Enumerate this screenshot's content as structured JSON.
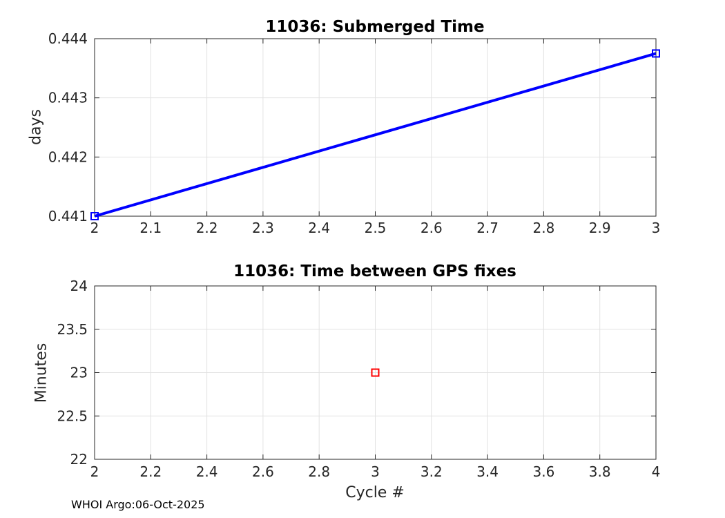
{
  "figure": {
    "background": "#ffffff",
    "footer": {
      "text": "WHOI Argo:06-Oct-2025"
    }
  },
  "style": {
    "axis_color": "#262626",
    "grid_color": "#e2e2e2",
    "tick_label_color": "#262626",
    "title_color": "#000000",
    "line_color": "#0000ff",
    "marker_color": "#ff0000"
  },
  "chart_data": [
    {
      "type": "line",
      "title": "11036: Submerged Time",
      "xlabel": "",
      "ylabel": "days",
      "xlim": [
        2,
        3
      ],
      "ylim": [
        0.441,
        0.444
      ],
      "grid": true,
      "legend": "none",
      "xticks": [
        2,
        2.1,
        2.2,
        2.3,
        2.4,
        2.5,
        2.6,
        2.7,
        2.8,
        2.9,
        3
      ],
      "xtick_labels": [
        "2",
        "2.1",
        "2.2",
        "2.3",
        "2.4",
        "2.5",
        "2.6",
        "2.7",
        "2.8",
        "2.9",
        "3"
      ],
      "yticks": [
        0.441,
        0.442,
        0.443,
        0.444
      ],
      "ytick_labels": [
        "0.441",
        "0.442",
        "0.443",
        "0.444"
      ],
      "series": [
        {
          "name": "submerged-time-days",
          "color": "#0000ff",
          "line_width": 4,
          "marker": "open-square",
          "marker_size": 10,
          "x": [
            2,
            3
          ],
          "y": [
            0.441,
            0.44375
          ]
        }
      ]
    },
    {
      "type": "scatter",
      "title": "11036: Time between GPS fixes",
      "xlabel": "Cycle #",
      "ylabel": "Minutes",
      "xlim": [
        2,
        4
      ],
      "ylim": [
        22,
        24
      ],
      "grid": true,
      "legend": "none",
      "xticks": [
        2,
        2.2,
        2.4,
        2.6,
        2.8,
        3,
        3.2,
        3.4,
        3.6,
        3.8,
        4
      ],
      "xtick_labels": [
        "2",
        "2.2",
        "2.4",
        "2.6",
        "2.8",
        "3",
        "3.2",
        "3.4",
        "3.6",
        "3.8",
        "4"
      ],
      "yticks": [
        22,
        22.5,
        23,
        23.5,
        24
      ],
      "ytick_labels": [
        "22",
        "22.5",
        "23",
        "23.5",
        "24"
      ],
      "series": [
        {
          "name": "gps-fix-interval-minutes",
          "color": "#ff0000",
          "line_width": 0,
          "marker": "open-square",
          "marker_size": 10,
          "x": [
            3
          ],
          "y": [
            23
          ]
        }
      ]
    }
  ]
}
